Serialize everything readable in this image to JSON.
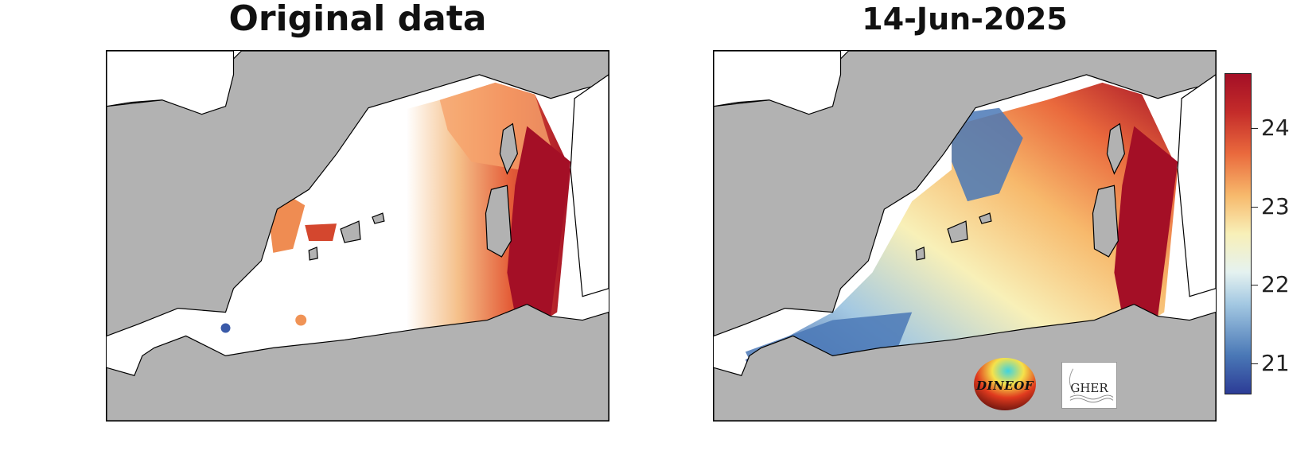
{
  "titles": {
    "left": "Original data",
    "right": "14-Jun-2025"
  },
  "colorbar": {
    "ticks": [
      "21",
      "22",
      "23",
      "24"
    ],
    "tick_values": [
      21,
      22,
      23,
      24
    ],
    "range": [
      20.6,
      24.7
    ],
    "colormap": "RdYlBu reversed",
    "colors": [
      "#2c3c96",
      "#4a78b6",
      "#a3c8e2",
      "#e5f2f0",
      "#f8f0b8",
      "#f7b96c",
      "#ea6a3d",
      "#c42c2a",
      "#a40f26"
    ]
  },
  "map": {
    "land_color": "#b2b2b2",
    "missing_color": "#ffffff",
    "coastline_color": "#000000"
  },
  "logos": {
    "dineof": "DINEOF",
    "gher": "GHER"
  }
}
